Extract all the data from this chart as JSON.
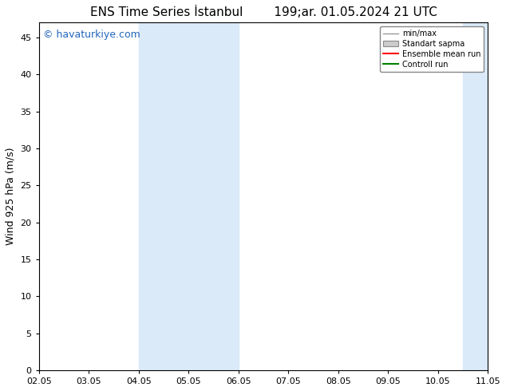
{
  "title": "ENS Time Series İstanbul",
  "title2": "199;ar. 01.05.2024 21 UTC",
  "ylabel": "Wind 925 hPa (m/s)",
  "watermark": "© havaturkiye.com",
  "xtick_labels": [
    "02.05",
    "03.05",
    "04.05",
    "05.05",
    "06.05",
    "07.05",
    "08.05",
    "09.05",
    "10.05",
    "11.05"
  ],
  "xtick_positions": [
    0,
    1,
    2,
    3,
    4,
    5,
    6,
    7,
    8,
    9
  ],
  "ylim": [
    0,
    47
  ],
  "yticks": [
    0,
    5,
    10,
    15,
    20,
    25,
    30,
    35,
    40,
    45
  ],
  "bg_color": "#ffffff",
  "plot_bg_color": "#ffffff",
  "shaded_regions": [
    {
      "xmin": 2.0,
      "xmax": 3.0,
      "color": "#daeaf8"
    },
    {
      "xmin": 3.0,
      "xmax": 4.0,
      "color": "#daeaf8"
    },
    {
      "xmin": 8.5,
      "xmax": 9.5,
      "color": "#daeaf8"
    }
  ],
  "legend_entries": [
    {
      "label": "min/max",
      "color": "#999999",
      "lw": 1.0,
      "ls": "solid",
      "type": "line"
    },
    {
      "label": "Standart sapma",
      "color": "#cccccc",
      "lw": 1,
      "ls": "solid",
      "type": "box"
    },
    {
      "label": "Ensemble mean run",
      "color": "#ff0000",
      "lw": 1.5,
      "ls": "solid",
      "type": "line"
    },
    {
      "label": "Controll run",
      "color": "#008000",
      "lw": 1.5,
      "ls": "solid",
      "type": "line"
    }
  ],
  "title_fontsize": 11,
  "axis_label_fontsize": 9,
  "tick_fontsize": 8,
  "watermark_fontsize": 9,
  "watermark_color": "#2266bb"
}
